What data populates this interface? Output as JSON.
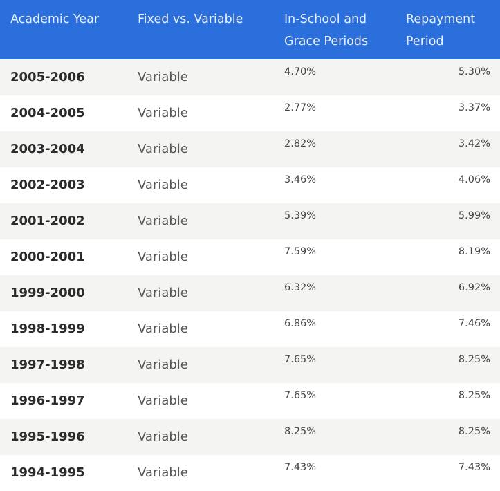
{
  "headers": {
    "year": "Academic Year",
    "type": "Fixed vs. Variable",
    "school_line1": "In-School and",
    "school_line2": "Grace Periods",
    "repay_line1": "Repayment",
    "repay_line2": "Period"
  },
  "rows": [
    {
      "year": "2005-2006",
      "type": "Variable",
      "in_school": "4.70%",
      "repayment": "5.30%"
    },
    {
      "year": "2004-2005",
      "type": "Variable",
      "in_school": "2.77%",
      "repayment": "3.37%"
    },
    {
      "year": "2003-2004",
      "type": "Variable",
      "in_school": "2.82%",
      "repayment": "3.42%"
    },
    {
      "year": "2002-2003",
      "type": "Variable",
      "in_school": "3.46%",
      "repayment": "4.06%"
    },
    {
      "year": "2001-2002",
      "type": "Variable",
      "in_school": "5.39%",
      "repayment": "5.99%"
    },
    {
      "year": "2000-2001",
      "type": "Variable",
      "in_school": "7.59%",
      "repayment": "8.19%"
    },
    {
      "year": "1999-2000",
      "type": "Variable",
      "in_school": "6.32%",
      "repayment": "6.92%"
    },
    {
      "year": "1998-1999",
      "type": "Variable",
      "in_school": "6.86%",
      "repayment": "7.46%"
    },
    {
      "year": "1997-1998",
      "type": "Variable",
      "in_school": "7.65%",
      "repayment": "8.25%"
    },
    {
      "year": "1996-1997",
      "type": "Variable",
      "in_school": "7.65%",
      "repayment": "8.25%"
    },
    {
      "year": "1995-1996",
      "type": "Variable",
      "in_school": "8.25%",
      "repayment": "8.25%"
    },
    {
      "year": "1994-1995",
      "type": "Variable",
      "in_school": "7.43%",
      "repayment": "7.43%"
    }
  ],
  "colors": {
    "header_bg": "#2a6fdb",
    "header_text": "#e9f0ff",
    "row_alt": "#f4f4f2"
  }
}
